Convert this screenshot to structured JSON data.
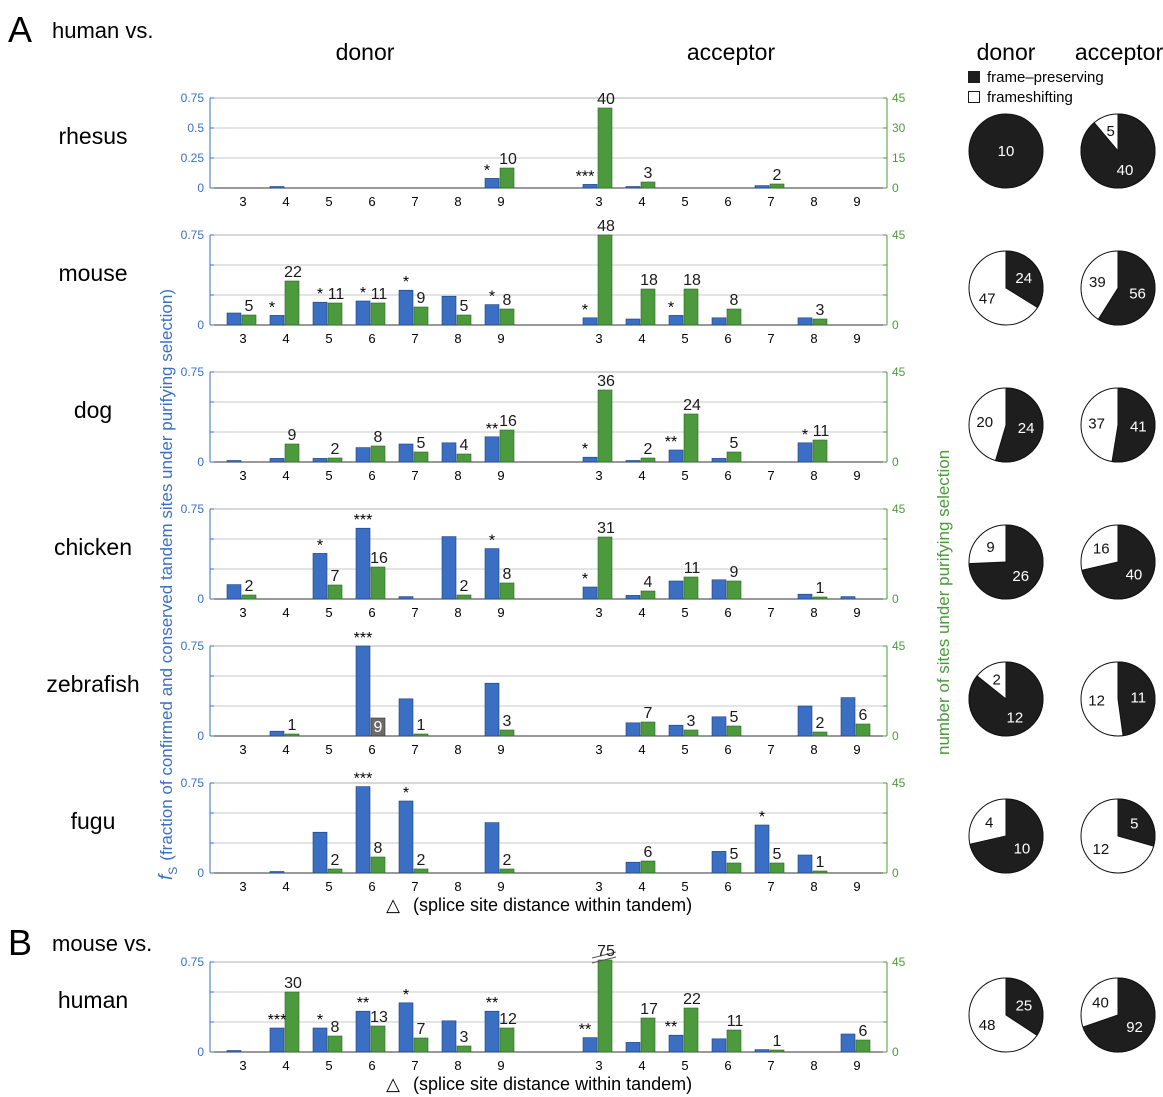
{
  "header": {
    "panel_a_letter": "A",
    "panel_a_title": "human vs.",
    "panel_b_letter": "B",
    "panel_b_title": "mouse vs.",
    "donor_heading": "donor",
    "acceptor_heading": "acceptor",
    "pie_donor_heading": "donor",
    "pie_acceptor_heading": "acceptor"
  },
  "legend": {
    "frame_preserving": "frame–preserving",
    "frameshifting": "frameshifting"
  },
  "axes": {
    "left_label_symbol": "f",
    "left_label_sub": "S",
    "left_label_text": "(fraction of confirmed and conserved tandem sites under purifying selection)",
    "right_label": "number of sites under purifying selection",
    "xlabel_glyph": "△",
    "xlabel": "(splice site distance within tandem)",
    "left_ticks": [
      "0.75",
      "0.5",
      "0.25",
      "0"
    ],
    "right_ticks": [
      "45",
      "30",
      "15",
      "0"
    ],
    "deltas": [
      "3",
      "4",
      "5",
      "6",
      "7",
      "8",
      "9"
    ]
  },
  "colors": {
    "blue": "#3b6fc4",
    "green": "#4c9a3d",
    "gray_bar": "#6b6b6b",
    "pie_dark": "#1e1e1e",
    "left_axis_text": "#3b6fc4",
    "right_axis_text": "#4c9a3d"
  },
  "chart_data": [
    {
      "type": "bar",
      "species": "rhesus",
      "x": [
        3,
        4,
        5,
        6,
        7,
        8,
        9
      ],
      "ylim_left": [
        0,
        0.75
      ],
      "ylim_right": [
        0,
        45
      ],
      "donor": {
        "fs": [
          0,
          0.005,
          0,
          0,
          0,
          0,
          0.08
        ],
        "counts": [
          null,
          null,
          null,
          null,
          null,
          null,
          10
        ],
        "stars": [
          "",
          "",
          "",
          "",
          "",
          "",
          "*"
        ]
      },
      "acceptor": {
        "fs": [
          0.03,
          0.005,
          0,
          0,
          0.02,
          0,
          0
        ],
        "counts": [
          40,
          3,
          null,
          null,
          2,
          null,
          null
        ],
        "stars": [
          "***",
          "",
          "",
          "",
          "",
          "",
          ""
        ]
      },
      "pies": {
        "donor": {
          "preserving": 10,
          "shifting": 0
        },
        "acceptor": {
          "preserving": 40,
          "shifting": 5
        }
      }
    },
    {
      "type": "bar",
      "species": "mouse",
      "x": [
        3,
        4,
        5,
        6,
        7,
        8,
        9
      ],
      "ylim_left": [
        0,
        0.75
      ],
      "ylim_right": [
        0,
        45
      ],
      "donor": {
        "fs": [
          0.1,
          0.08,
          0.19,
          0.2,
          0.29,
          0.24,
          0.17
        ],
        "counts": [
          5,
          22,
          11,
          11,
          9,
          5,
          8
        ],
        "stars": [
          "",
          "*",
          "*",
          "*",
          "*",
          "",
          "*"
        ]
      },
      "acceptor": {
        "fs": [
          0.06,
          0.05,
          0.08,
          0.06,
          0,
          0.06,
          0
        ],
        "counts": [
          48,
          18,
          18,
          8,
          null,
          3,
          null
        ],
        "stars": [
          "*",
          "",
          "*",
          "",
          "",
          "",
          ""
        ]
      },
      "pies": {
        "donor": {
          "preserving": 24,
          "shifting": 47
        },
        "acceptor": {
          "preserving": 56,
          "shifting": 39
        }
      }
    },
    {
      "type": "bar",
      "species": "dog",
      "x": [
        3,
        4,
        5,
        6,
        7,
        8,
        9
      ],
      "ylim_left": [
        0,
        0.75
      ],
      "ylim_right": [
        0,
        45
      ],
      "donor": {
        "fs": [
          0.005,
          0.03,
          0.03,
          0.12,
          0.15,
          0.16,
          0.21
        ],
        "counts": [
          null,
          9,
          2,
          8,
          5,
          4,
          16
        ],
        "stars": [
          "",
          "",
          "",
          "",
          "",
          "",
          "**"
        ]
      },
      "acceptor": {
        "fs": [
          0.04,
          0.005,
          0.1,
          0.03,
          0,
          0.16,
          0
        ],
        "counts": [
          36,
          2,
          24,
          5,
          null,
          11,
          null
        ],
        "stars": [
          "*",
          "",
          "**",
          "",
          "",
          "*",
          ""
        ]
      },
      "pies": {
        "donor": {
          "preserving": 24,
          "shifting": 20
        },
        "acceptor": {
          "preserving": 41,
          "shifting": 37
        }
      }
    },
    {
      "type": "bar",
      "species": "chicken",
      "x": [
        3,
        4,
        5,
        6,
        7,
        8,
        9
      ],
      "ylim_left": [
        0,
        0.75
      ],
      "ylim_right": [
        0,
        45
      ],
      "donor": {
        "fs": [
          0.12,
          0,
          0.38,
          0.59,
          0.02,
          0.52,
          0.42
        ],
        "counts": [
          2,
          null,
          7,
          16,
          null,
          2,
          8
        ],
        "stars": [
          "",
          "",
          "*",
          "***",
          "",
          "",
          "*"
        ]
      },
      "acceptor": {
        "fs": [
          0.1,
          0.03,
          0.15,
          0.16,
          0,
          0.04,
          0.02
        ],
        "counts": [
          31,
          4,
          11,
          9,
          null,
          1,
          null
        ],
        "stars": [
          "*",
          "",
          "",
          "",
          "",
          "",
          ""
        ]
      },
      "pies": {
        "donor": {
          "preserving": 26,
          "shifting": 9
        },
        "acceptor": {
          "preserving": 40,
          "shifting": 16
        }
      }
    },
    {
      "type": "bar",
      "species": "zebrafish",
      "x": [
        3,
        4,
        5,
        6,
        7,
        8,
        9
      ],
      "ylim_left": [
        0,
        0.75
      ],
      "ylim_right": [
        0,
        45
      ],
      "donor": {
        "fs": [
          0,
          0.04,
          0,
          0.75,
          0.31,
          0,
          0.44
        ],
        "counts": [
          null,
          1,
          null,
          9,
          1,
          null,
          3
        ],
        "stars": [
          "",
          "",
          "",
          "***",
          "",
          "",
          ""
        ],
        "gray_bars": [
          false,
          false,
          false,
          true,
          false,
          false,
          false
        ]
      },
      "acceptor": {
        "fs": [
          0,
          0.11,
          0.09,
          0.16,
          0,
          0.25,
          0.32
        ],
        "counts": [
          null,
          7,
          3,
          5,
          null,
          2,
          6
        ],
        "stars": [
          "",
          "",
          "",
          "",
          "",
          "",
          ""
        ]
      },
      "pies": {
        "donor": {
          "preserving": 12,
          "shifting": 2
        },
        "acceptor": {
          "preserving": 11,
          "shifting": 12
        }
      }
    },
    {
      "type": "bar",
      "species": "fugu",
      "x": [
        3,
        4,
        5,
        6,
        7,
        8,
        9
      ],
      "ylim_left": [
        0,
        0.75
      ],
      "ylim_right": [
        0,
        45
      ],
      "donor": {
        "fs": [
          0,
          0.01,
          0.34,
          0.72,
          0.6,
          0,
          0.42
        ],
        "counts": [
          null,
          null,
          2,
          8,
          2,
          null,
          2
        ],
        "stars": [
          "",
          "",
          "",
          "***",
          "*",
          "",
          ""
        ]
      },
      "acceptor": {
        "fs": [
          0,
          0.09,
          0,
          0.18,
          0.4,
          0.15,
          0
        ],
        "counts": [
          null,
          6,
          null,
          5,
          5,
          1,
          null
        ],
        "stars": [
          "",
          "",
          "",
          "",
          "*",
          "",
          ""
        ]
      },
      "pies": {
        "donor": {
          "preserving": 10,
          "shifting": 4
        },
        "acceptor": {
          "preserving": 5,
          "shifting": 12
        }
      }
    },
    {
      "type": "bar",
      "species": "human",
      "x": [
        3,
        4,
        5,
        6,
        7,
        8,
        9
      ],
      "ylim_left": [
        0,
        0.75
      ],
      "ylim_right": [
        0,
        45
      ],
      "donor": {
        "fs": [
          0.005,
          0.2,
          0.2,
          0.34,
          0.41,
          0.26,
          0.34
        ],
        "counts": [
          null,
          30,
          8,
          13,
          7,
          3,
          12
        ],
        "stars": [
          "",
          "***",
          "*",
          "**",
          "*",
          "",
          "**"
        ]
      },
      "acceptor": {
        "fs": [
          0.12,
          0.08,
          0.14,
          0.11,
          0.02,
          0,
          0.15
        ],
        "counts": [
          75,
          17,
          22,
          11,
          1,
          null,
          6
        ],
        "stars": [
          "**",
          "",
          "**",
          "",
          "",
          "",
          ""
        ],
        "broken_bars": [
          true,
          false,
          false,
          false,
          false,
          false,
          false
        ]
      },
      "pies": {
        "donor": {
          "preserving": 25,
          "shifting": 48
        },
        "acceptor": {
          "preserving": 92,
          "shifting": 40
        }
      }
    }
  ]
}
